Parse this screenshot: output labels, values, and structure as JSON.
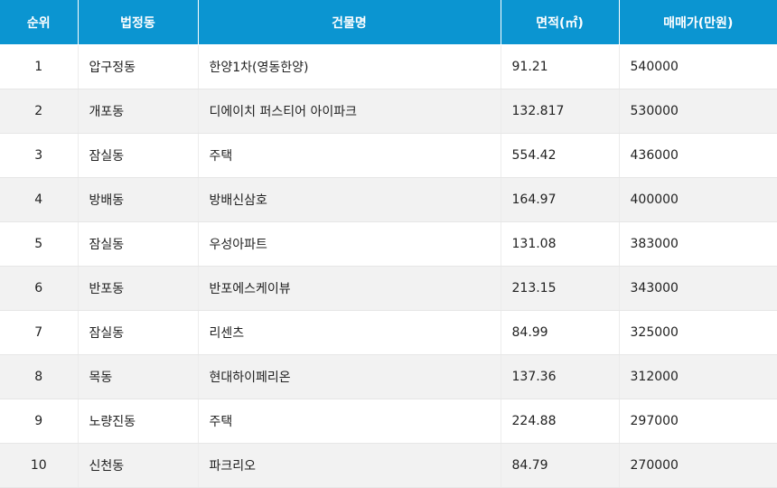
{
  "table": {
    "headers": {
      "rank": "순위",
      "dong": "법정동",
      "building": "건물명",
      "area": "면적(㎡)",
      "price": "매매가(만원)"
    },
    "rows": [
      {
        "rank": "1",
        "dong": "압구정동",
        "building": "한양1차(영동한양)",
        "area": "91.21",
        "price": "540000"
      },
      {
        "rank": "2",
        "dong": "개포동",
        "building": "디에이치 퍼스티어 아이파크",
        "area": "132.817",
        "price": "530000"
      },
      {
        "rank": "3",
        "dong": "잠실동",
        "building": "주택",
        "area": "554.42",
        "price": "436000"
      },
      {
        "rank": "4",
        "dong": "방배동",
        "building": "방배신삼호",
        "area": "164.97",
        "price": "400000"
      },
      {
        "rank": "5",
        "dong": "잠실동",
        "building": "우성아파트",
        "area": "131.08",
        "price": "383000"
      },
      {
        "rank": "6",
        "dong": "반포동",
        "building": "반포에스케이뷰",
        "area": "213.15",
        "price": "343000"
      },
      {
        "rank": "7",
        "dong": "잠실동",
        "building": "리센츠",
        "area": "84.99",
        "price": "325000"
      },
      {
        "rank": "8",
        "dong": "목동",
        "building": "현대하이페리온",
        "area": "137.36",
        "price": "312000"
      },
      {
        "rank": "9",
        "dong": "노량진동",
        "building": "주택",
        "area": "224.88",
        "price": "297000"
      },
      {
        "rank": "10",
        "dong": "신천동",
        "building": "파크리오",
        "area": "84.79",
        "price": "270000"
      }
    ]
  },
  "colors": {
    "header_bg": "#0b95d1",
    "header_text": "#ffffff",
    "row_alt_bg": "#f2f2f2",
    "row_bg": "#ffffff"
  }
}
